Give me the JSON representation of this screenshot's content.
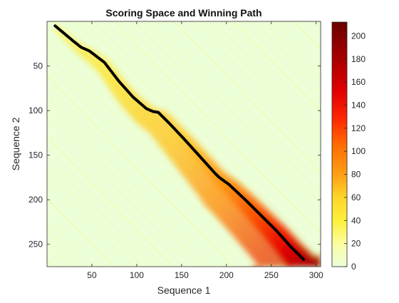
{
  "chart_data": {
    "type": "heatmap",
    "title": "Scoring Space and Winning Path",
    "xlabel": "Sequence 1",
    "ylabel": "Sequence 2",
    "xlim": [
      0,
      305
    ],
    "ylim": [
      275,
      0
    ],
    "xticks": [
      50,
      100,
      150,
      200,
      250,
      300
    ],
    "yticks": [
      50,
      100,
      150,
      200,
      250
    ],
    "grid": false,
    "colorbar": {
      "range": [
        0,
        212
      ],
      "ticks": [
        0,
        20,
        40,
        60,
        80,
        100,
        120,
        140,
        160,
        180,
        200
      ],
      "colormap": "hot-reversed"
    },
    "background_color": "#ebffd9",
    "path_color": "#000000",
    "winning_path": [
      {
        "x": 9,
        "y": 5
      },
      {
        "x": 28,
        "y": 21
      },
      {
        "x": 38,
        "y": 29
      },
      {
        "x": 47,
        "y": 33
      },
      {
        "x": 64,
        "y": 46
      },
      {
        "x": 80,
        "y": 67
      },
      {
        "x": 96,
        "y": 85
      },
      {
        "x": 111,
        "y": 98
      },
      {
        "x": 118,
        "y": 101
      },
      {
        "x": 124,
        "y": 102
      },
      {
        "x": 137,
        "y": 115
      },
      {
        "x": 152,
        "y": 131
      },
      {
        "x": 170,
        "y": 151
      },
      {
        "x": 187,
        "y": 170
      },
      {
        "x": 192,
        "y": 175
      },
      {
        "x": 203,
        "y": 183
      },
      {
        "x": 221,
        "y": 200
      },
      {
        "x": 239,
        "y": 218
      },
      {
        "x": 256,
        "y": 235
      },
      {
        "x": 271,
        "y": 252
      },
      {
        "x": 286,
        "y": 267
      }
    ],
    "score_band_edges": {
      "inner": [
        {
          "x": 9,
          "y": 5,
          "w": 4
        },
        {
          "x": 40,
          "y": 30,
          "w": 8
        },
        {
          "x": 80,
          "y": 67,
          "w": 10
        },
        {
          "x": 120,
          "y": 101,
          "w": 12
        },
        {
          "x": 160,
          "y": 140,
          "w": 14
        },
        {
          "x": 200,
          "y": 181,
          "w": 18
        },
        {
          "x": 240,
          "y": 219,
          "w": 22
        },
        {
          "x": 286,
          "y": 267,
          "w": 26
        }
      ]
    }
  }
}
